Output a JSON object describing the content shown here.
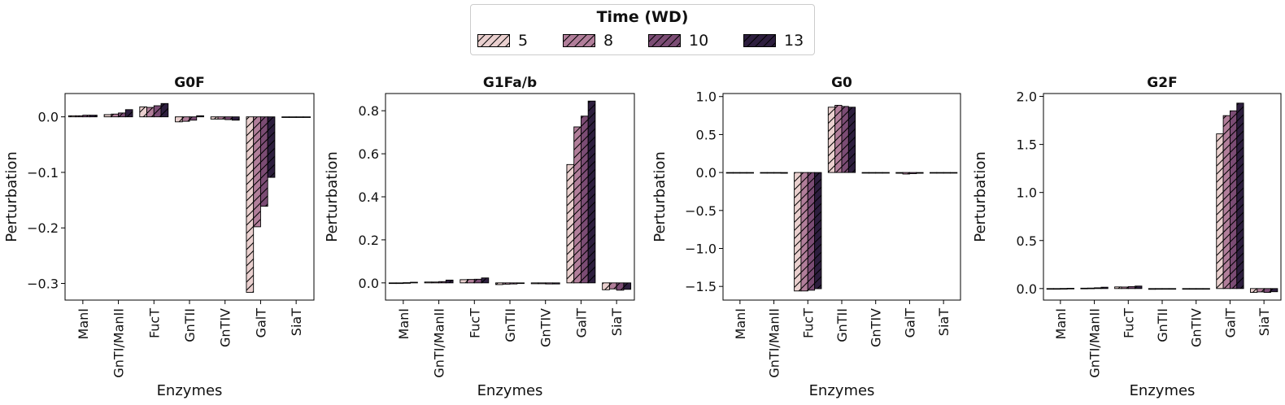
{
  "legend": {
    "title": "Time (WD)",
    "entries": [
      "5",
      "8",
      "10",
      "13"
    ],
    "colors": [
      "#ead0cf",
      "#b17e9a",
      "#7b4c74",
      "#2d1e3e"
    ]
  },
  "chart_data": [
    {
      "type": "bar",
      "title": "G0F",
      "xlabel": "Enzymes",
      "ylabel": "Perturbation",
      "categories": [
        "ManI",
        "GnTI/ManII",
        "FucT",
        "GnTII",
        "GnTIV",
        "GalT",
        "SiaT"
      ],
      "ylim": [
        -0.33,
        0.042
      ],
      "yticks": [
        0.0,
        -0.1,
        -0.2,
        -0.3
      ],
      "ytick_labels": [
        "0.0",
        "−0.1",
        "−0.2",
        "−0.3"
      ],
      "series": [
        {
          "name": "5",
          "values": [
            0.002,
            0.004,
            0.018,
            -0.009,
            -0.004,
            -0.316,
            0.0
          ]
        },
        {
          "name": "8",
          "values": [
            0.002,
            0.005,
            0.017,
            -0.008,
            -0.004,
            -0.198,
            0.0
          ]
        },
        {
          "name": "10",
          "values": [
            0.003,
            0.007,
            0.02,
            -0.006,
            -0.005,
            -0.161,
            0.0
          ]
        },
        {
          "name": "13",
          "values": [
            0.003,
            0.013,
            0.024,
            0.002,
            -0.006,
            -0.109,
            0.0
          ]
        }
      ]
    },
    {
      "type": "bar",
      "title": "G1Fa/b",
      "xlabel": "Enzymes",
      "ylabel": "Perturbation",
      "categories": [
        "ManI",
        "GnTI/ManII",
        "FucT",
        "GnTII",
        "GnTIV",
        "GalT",
        "SiaT"
      ],
      "ylim": [
        -0.08,
        0.88
      ],
      "yticks": [
        0.0,
        0.2,
        0.4,
        0.6,
        0.8
      ],
      "ytick_labels": [
        "0.0",
        "0.2",
        "0.4",
        "0.6",
        "0.8"
      ],
      "series": [
        {
          "name": "5",
          "values": [
            0.0,
            0.004,
            0.015,
            -0.008,
            -0.004,
            0.55,
            -0.032
          ]
        },
        {
          "name": "8",
          "values": [
            0.0,
            0.004,
            0.016,
            -0.006,
            -0.004,
            0.725,
            -0.028
          ]
        },
        {
          "name": "10",
          "values": [
            0.001,
            0.006,
            0.017,
            -0.005,
            -0.005,
            0.775,
            -0.034
          ]
        },
        {
          "name": "13",
          "values": [
            0.003,
            0.013,
            0.023,
            -0.003,
            -0.005,
            0.845,
            -0.03
          ]
        }
      ]
    },
    {
      "type": "bar",
      "title": "G0",
      "xlabel": "Enzymes",
      "ylabel": "Perturbation",
      "categories": [
        "ManI",
        "GnTI/ManII",
        "FucT",
        "GnTII",
        "GnTIV",
        "GalT",
        "SiaT"
      ],
      "ylim": [
        -1.68,
        1.04
      ],
      "yticks": [
        1.0,
        0.5,
        0.0,
        -0.5,
        -1.0,
        -1.5
      ],
      "ytick_labels": [
        "1.0",
        "0.5",
        "0.0",
        "−0.5",
        "−1.0",
        "−1.5"
      ],
      "series": [
        {
          "name": "5",
          "values": [
            0.0,
            -0.005,
            -1.56,
            0.86,
            0.0,
            -0.01,
            0.0
          ]
        },
        {
          "name": "8",
          "values": [
            0.0,
            -0.006,
            -1.56,
            0.885,
            0.0,
            -0.02,
            0.0
          ]
        },
        {
          "name": "10",
          "values": [
            0.0,
            -0.008,
            -1.55,
            0.87,
            0.0,
            -0.015,
            0.0
          ]
        },
        {
          "name": "13",
          "values": [
            0.0,
            -0.01,
            -1.53,
            0.86,
            0.0,
            -0.01,
            0.0
          ]
        }
      ]
    },
    {
      "type": "bar",
      "title": "G2F",
      "xlabel": "Enzymes",
      "ylabel": "Perturbation",
      "categories": [
        "ManI",
        "GnTI/ManII",
        "FucT",
        "GnTII",
        "GnTIV",
        "GalT",
        "SiaT"
      ],
      "ylim": [
        -0.12,
        2.03
      ],
      "yticks": [
        0.0,
        0.5,
        1.0,
        1.5,
        2.0
      ],
      "ytick_labels": [
        "0.0",
        "0.5",
        "1.0",
        "1.5",
        "2.0"
      ],
      "series": [
        {
          "name": "5",
          "values": [
            0.0,
            0.004,
            0.017,
            -0.008,
            -0.004,
            1.61,
            -0.04
          ]
        },
        {
          "name": "8",
          "values": [
            0.0,
            0.005,
            0.016,
            -0.007,
            -0.004,
            1.8,
            -0.035
          ]
        },
        {
          "name": "10",
          "values": [
            0.001,
            0.008,
            0.02,
            -0.006,
            -0.005,
            1.85,
            -0.04
          ]
        },
        {
          "name": "13",
          "values": [
            0.003,
            0.014,
            0.026,
            -0.004,
            -0.006,
            1.93,
            -0.033
          ]
        }
      ]
    }
  ]
}
